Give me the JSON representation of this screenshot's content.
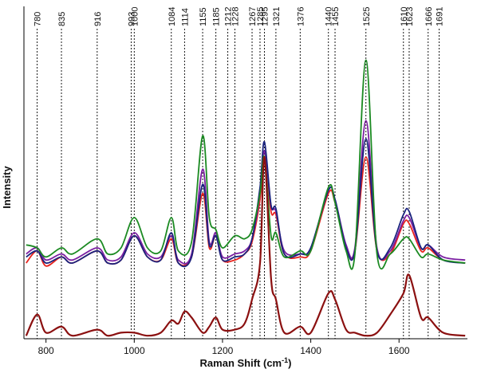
{
  "chart_data": {
    "type": "line",
    "xlabel": "Raman Shift (cm",
    "xlabel_sup": "-1",
    "xlabel_close": ")",
    "ylabel": "Intensity",
    "xlim": [
      750,
      1755
    ],
    "ylim": [
      0,
      1
    ],
    "x_ticks": [
      800,
      1000,
      1200,
      1400,
      1600
    ],
    "x_tick_labels": [
      "800",
      "1000",
      "1200",
      "1400",
      "1600"
    ],
    "peak_lines": [
      780,
      835,
      916,
      993,
      1000,
      1084,
      1114,
      1155,
      1185,
      1212,
      1228,
      1267,
      1285,
      1295,
      1321,
      1376,
      1440,
      1455,
      1525,
      1610,
      1623,
      1666,
      1691
    ],
    "peak_labels": [
      "780",
      "835",
      "916",
      "993",
      "1000",
      "1084",
      "1114",
      "1155",
      "1185",
      "1212",
      "1228",
      "1267",
      "1285",
      "1295",
      "1321",
      "1376",
      "1440",
      "1455",
      "1525",
      "1610",
      "1623",
      "1666",
      "1691"
    ],
    "grid": false,
    "legend": "none",
    "series": [
      {
        "color": "#e8231d",
        "x": [
          755,
          780,
          800,
          835,
          860,
          916,
          940,
          970,
          1000,
          1030,
          1060,
          1084,
          1100,
          1130,
          1155,
          1170,
          1185,
          1200,
          1228,
          1250,
          1267,
          1285,
          1295,
          1310,
          1321,
          1340,
          1376,
          1400,
          1440,
          1455,
          1480,
          1500,
          1525,
          1550,
          1580,
          1610,
          1623,
          1650,
          1666,
          1700,
          1750
        ],
        "y": [
          0.25,
          0.29,
          0.24,
          0.27,
          0.25,
          0.29,
          0.25,
          0.26,
          0.34,
          0.27,
          0.26,
          0.33,
          0.25,
          0.27,
          0.48,
          0.3,
          0.34,
          0.26,
          0.26,
          0.28,
          0.32,
          0.46,
          0.6,
          0.42,
          0.41,
          0.28,
          0.27,
          0.29,
          0.48,
          0.45,
          0.3,
          0.29,
          0.6,
          0.29,
          0.28,
          0.38,
          0.38,
          0.29,
          0.3,
          0.26,
          0.25
        ]
      },
      {
        "color": "#7b1fa2",
        "x": [
          755,
          780,
          800,
          835,
          860,
          916,
          940,
          970,
          1000,
          1030,
          1060,
          1084,
          1100,
          1130,
          1155,
          1170,
          1185,
          1200,
          1228,
          1250,
          1267,
          1285,
          1295,
          1310,
          1321,
          1340,
          1376,
          1400,
          1440,
          1455,
          1480,
          1500,
          1525,
          1550,
          1580,
          1610,
          1623,
          1650,
          1666,
          1700,
          1750
        ],
        "y": [
          0.28,
          0.3,
          0.26,
          0.28,
          0.26,
          0.3,
          0.26,
          0.27,
          0.35,
          0.28,
          0.27,
          0.34,
          0.26,
          0.28,
          0.56,
          0.32,
          0.35,
          0.27,
          0.28,
          0.29,
          0.33,
          0.48,
          0.62,
          0.44,
          0.42,
          0.29,
          0.28,
          0.3,
          0.49,
          0.46,
          0.31,
          0.3,
          0.72,
          0.3,
          0.29,
          0.39,
          0.4,
          0.3,
          0.31,
          0.27,
          0.26
        ]
      },
      {
        "color": "#1a237e",
        "x": [
          755,
          780,
          800,
          835,
          860,
          916,
          940,
          970,
          1000,
          1030,
          1060,
          1084,
          1100,
          1130,
          1155,
          1170,
          1185,
          1200,
          1228,
          1250,
          1267,
          1285,
          1295,
          1310,
          1321,
          1340,
          1376,
          1400,
          1440,
          1455,
          1480,
          1500,
          1525,
          1550,
          1580,
          1610,
          1623,
          1650,
          1666,
          1700,
          1750
        ],
        "y": [
          0.27,
          0.29,
          0.25,
          0.27,
          0.25,
          0.29,
          0.25,
          0.26,
          0.34,
          0.27,
          0.26,
          0.35,
          0.25,
          0.27,
          0.51,
          0.31,
          0.34,
          0.26,
          0.27,
          0.28,
          0.33,
          0.5,
          0.65,
          0.44,
          0.43,
          0.28,
          0.28,
          0.3,
          0.49,
          0.46,
          0.3,
          0.29,
          0.66,
          0.29,
          0.3,
          0.41,
          0.42,
          0.3,
          0.31,
          0.26,
          0.25
        ]
      },
      {
        "color": "#1b8a22",
        "x": [
          755,
          780,
          800,
          835,
          860,
          916,
          940,
          970,
          1000,
          1030,
          1060,
          1084,
          1100,
          1130,
          1155,
          1170,
          1185,
          1200,
          1228,
          1250,
          1267,
          1285,
          1295,
          1310,
          1321,
          1340,
          1376,
          1400,
          1440,
          1455,
          1480,
          1500,
          1525,
          1550,
          1580,
          1610,
          1623,
          1650,
          1666,
          1700,
          1750
        ],
        "y": [
          0.31,
          0.3,
          0.27,
          0.3,
          0.28,
          0.33,
          0.28,
          0.3,
          0.4,
          0.3,
          0.29,
          0.4,
          0.29,
          0.32,
          0.67,
          0.4,
          0.36,
          0.3,
          0.34,
          0.33,
          0.36,
          0.48,
          0.6,
          0.34,
          0.35,
          0.27,
          0.29,
          0.29,
          0.5,
          0.45,
          0.29,
          0.28,
          0.92,
          0.28,
          0.28,
          0.33,
          0.33,
          0.27,
          0.28,
          0.26,
          0.25
        ]
      },
      {
        "color": "#8b1010",
        "x": [
          755,
          780,
          800,
          835,
          860,
          916,
          940,
          970,
          1000,
          1030,
          1060,
          1084,
          1100,
          1114,
          1130,
          1155,
          1170,
          1185,
          1200,
          1228,
          1250,
          1267,
          1285,
          1295,
          1310,
          1321,
          1340,
          1376,
          1400,
          1440,
          1455,
          1480,
          1500,
          1525,
          1550,
          1580,
          1610,
          1623,
          1650,
          1666,
          1700,
          1750
        ],
        "y": [
          0.01,
          0.08,
          0.02,
          0.04,
          0.01,
          0.03,
          0.01,
          0.02,
          0.02,
          0.01,
          0.02,
          0.06,
          0.05,
          0.09,
          0.07,
          0.02,
          0.04,
          0.07,
          0.03,
          0.03,
          0.05,
          0.13,
          0.25,
          0.6,
          0.2,
          0.13,
          0.02,
          0.04,
          0.02,
          0.15,
          0.13,
          0.03,
          0.02,
          0.01,
          0.02,
          0.08,
          0.15,
          0.21,
          0.07,
          0.07,
          0.02,
          0.01
        ]
      }
    ]
  }
}
